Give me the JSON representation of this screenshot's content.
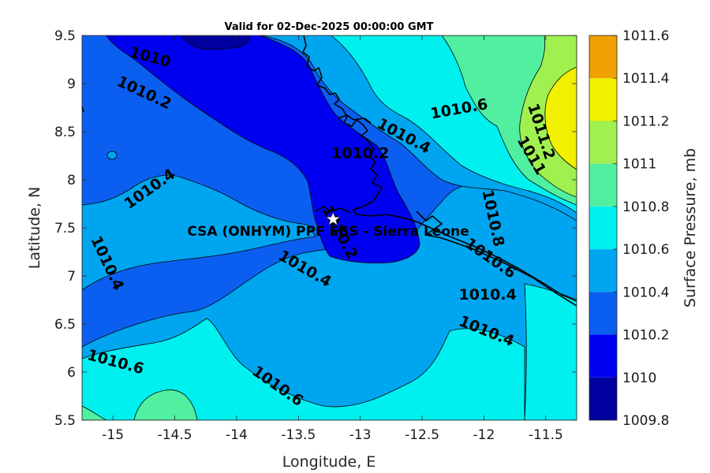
{
  "title": "Valid for 02-Dec-2025 00:00:00 GMT",
  "site_label": "CSA (ONHYM) PPF EBS  - Sierra Leone",
  "axes": {
    "xlabel": "Longitude, E",
    "ylabel": "Latitude, N",
    "xlim": [
      -15.25,
      -11.25
    ],
    "ylim": [
      5.5,
      9.5
    ],
    "xticks": [
      "-15",
      "-14.5",
      "-14",
      "-13.5",
      "-13",
      "-12.5",
      "-12",
      "-11.5"
    ],
    "yticks": [
      "5.5",
      "6",
      "6.5",
      "7",
      "7.5",
      "8",
      "8.5",
      "9",
      "9.5"
    ]
  },
  "colorbar": {
    "label": "Surface Pressure, mb",
    "levels": [
      "1009.8",
      "1010",
      "1010.2",
      "1010.4",
      "1010.6",
      "1010.8",
      "1011",
      "1011.2",
      "1011.4",
      "1011.6"
    ],
    "colors": [
      "#00009f",
      "#0000f0",
      "#0a5ff0",
      "#00a5f0",
      "#00f0f0",
      "#50f0a0",
      "#a0f050",
      "#f0f000",
      "#f0a000",
      "#f05000"
    ]
  },
  "contour_labels": [
    {
      "text": "1010",
      "lon": -14.7,
      "lat": 9.27,
      "angle": 15
    },
    {
      "text": "1010.2",
      "lon": -14.75,
      "lat": 8.9,
      "angle": 25
    },
    {
      "text": "1010.6",
      "lon": -12.2,
      "lat": 8.73,
      "angle": -10
    },
    {
      "text": "1010.4",
      "lon": -12.65,
      "lat": 8.45,
      "angle": 28
    },
    {
      "text": "1010.2",
      "lon": -13.0,
      "lat": 8.27,
      "angle": 0
    },
    {
      "text": "1011.2",
      "lon": -11.54,
      "lat": 8.5,
      "angle": 72
    },
    {
      "text": "1011",
      "lon": -11.62,
      "lat": 8.25,
      "angle": 60
    },
    {
      "text": "1010.4",
      "lon": -14.7,
      "lat": 7.9,
      "angle": -35
    },
    {
      "text": "1010.8",
      "lon": -11.93,
      "lat": 7.6,
      "angle": 78
    },
    {
      "text": "1010.2",
      "lon": -13.17,
      "lat": 7.45,
      "angle": 62
    },
    {
      "text": "1010.4",
      "lon": -15.05,
      "lat": 7.13,
      "angle": 65
    },
    {
      "text": "1010.6",
      "lon": -11.95,
      "lat": 7.18,
      "angle": 35
    },
    {
      "text": "1010.4",
      "lon": -13.45,
      "lat": 7.07,
      "angle": 30
    },
    {
      "text": "1010.4",
      "lon": -11.97,
      "lat": 6.8,
      "angle": 0
    },
    {
      "text": "1010.4",
      "lon": -11.98,
      "lat": 6.42,
      "angle": 22
    },
    {
      "text": "1010.6",
      "lon": -14.98,
      "lat": 6.1,
      "angle": 15
    },
    {
      "text": "1010.6",
      "lon": -13.67,
      "lat": 5.85,
      "angle": 35
    }
  ],
  "site_marker": {
    "lon": -13.22,
    "lat": 7.59
  }
}
